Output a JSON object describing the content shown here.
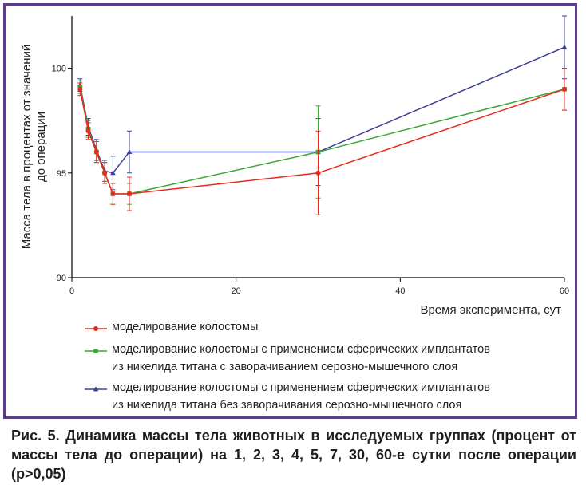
{
  "chart_data": {
    "type": "line",
    "ylabel_line1": "Масса тела в процентах от значений",
    "ylabel_line2": "до операции",
    "xlabel": "Время эксперимента, сут",
    "xlim": [
      0,
      60
    ],
    "ylim": [
      90,
      102.5
    ],
    "xticks": [
      0,
      20,
      40,
      60
    ],
    "yticks": [
      90,
      95,
      100
    ],
    "x": [
      1,
      2,
      3,
      4,
      5,
      7,
      30,
      60
    ],
    "series": [
      {
        "name_line1": "моделирование колостомы",
        "name_line2": "",
        "color": "#e8291c",
        "marker": "circle",
        "values": [
          99.0,
          97.0,
          96.0,
          95.0,
          94.0,
          94.0,
          95.0,
          99.0
        ],
        "error": [
          0.3,
          0.4,
          0.5,
          0.5,
          0.5,
          0.8,
          2.0,
          1.0
        ]
      },
      {
        "name_line1": "моделирование колостомы с применением сферических имплантатов",
        "name_line2": "из никелида титана с заворачиванием серозно-мышечного слоя",
        "color": "#3aa637",
        "marker": "square",
        "values": [
          99.1,
          97.1,
          96.0,
          95.0,
          94.0,
          94.0,
          96.0,
          99.0
        ],
        "error": [
          0.3,
          0.4,
          0.5,
          0.5,
          0.5,
          0.5,
          2.2,
          1.0
        ]
      },
      {
        "name_line1": "моделирование колостомы с применением сферических имплантатов",
        "name_line2": "из никелида титана без заворачивания серозно-мышечного слоя",
        "color": "#3b3f96",
        "marker": "triangle",
        "values": [
          99.2,
          97.2,
          96.1,
          95.1,
          95.0,
          96.0,
          96.0,
          101.0
        ],
        "error": [
          0.3,
          0.4,
          0.5,
          0.5,
          0.8,
          1.0,
          1.6,
          1.5
        ]
      }
    ]
  },
  "caption": "Рис. 5. Динамика массы тела животных в исследуемых группах (процент от массы тела до операции) на 1, 2, 3, 4, 5, 7, 30, 60-е сутки после операции (p>0,05)"
}
